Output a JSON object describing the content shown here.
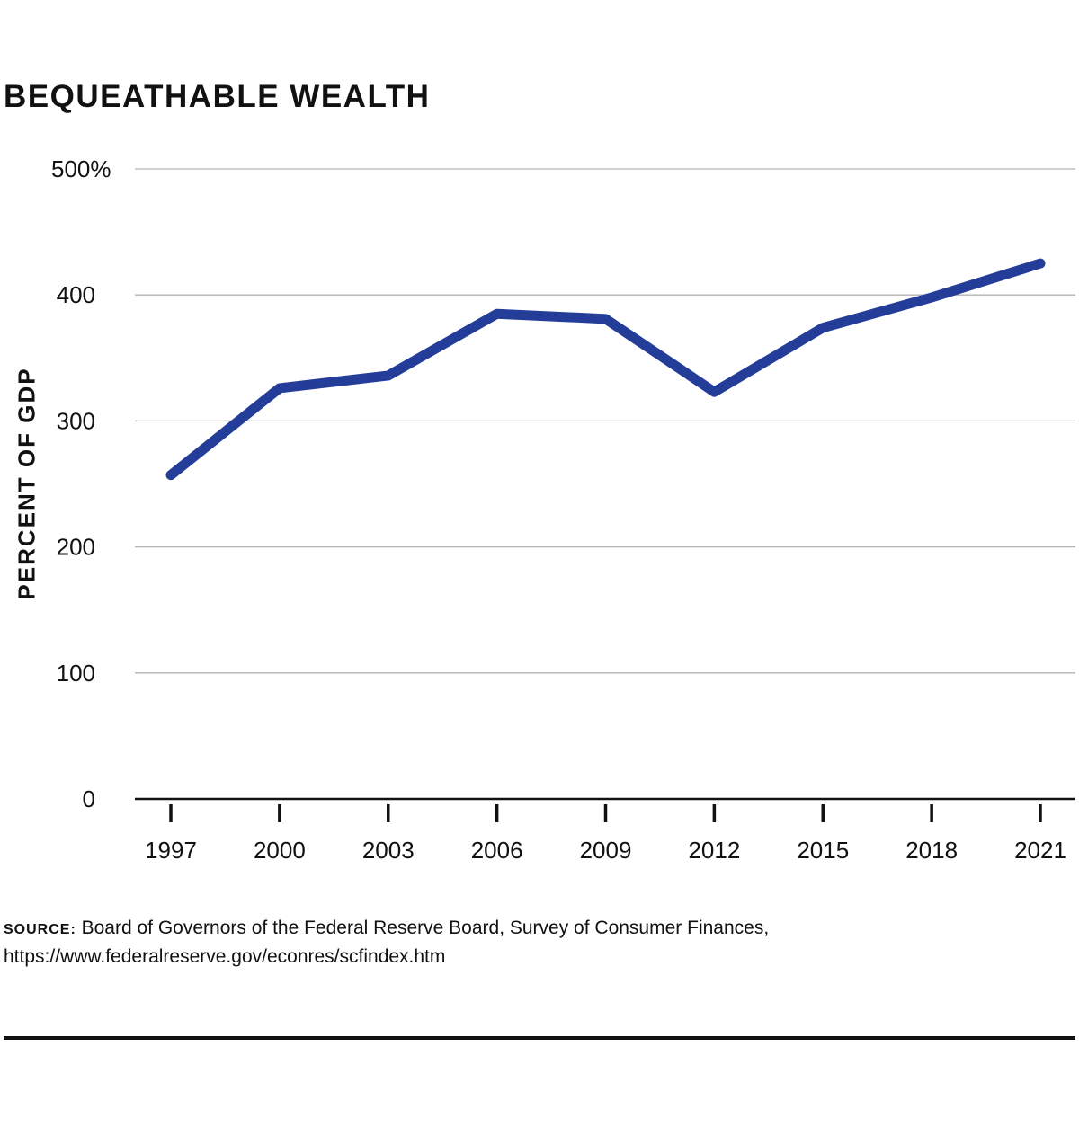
{
  "chart_data": {
    "type": "line",
    "title": "BEQUEATHABLE WEALTH",
    "ylabel": "PERCENT OF GDP",
    "xlabel": "",
    "x": [
      1997,
      2000,
      2003,
      2006,
      2009,
      2012,
      2015,
      2018,
      2021
    ],
    "series": [
      {
        "values": [
          257,
          326,
          336,
          385,
          381,
          323,
          374,
          398,
          425
        ]
      }
    ],
    "ylim": [
      0,
      500
    ],
    "yticks": [
      0,
      100,
      200,
      300,
      400,
      500
    ],
    "ytick_labels": [
      "0",
      "100",
      "200",
      "300",
      "400",
      "500%"
    ],
    "xticks": [
      1997,
      2000,
      2003,
      2006,
      2009,
      2012,
      2015,
      2018,
      2021
    ],
    "xtick_labels": [
      "1997",
      "2000",
      "2003",
      "2006",
      "2009",
      "2012",
      "2015",
      "2018",
      "2021"
    ],
    "grid": true,
    "line_color": "#233d99",
    "grid_color": "#b3b3b3",
    "axis_color": "#111111"
  },
  "source": {
    "label": "Source:",
    "text": "Board of Governors of the Federal Reserve Board, Survey of Consumer Finances, https://www.federalreserve.gov/econres/scfindex.htm"
  }
}
